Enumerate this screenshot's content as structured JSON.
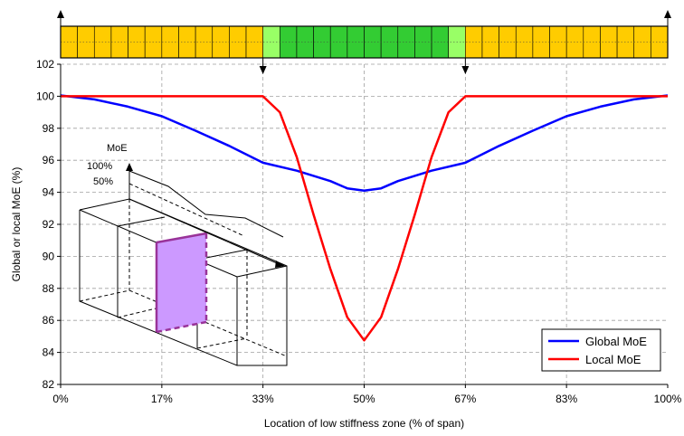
{
  "chart_data": {
    "type": "line",
    "xlabel": "Location of low stiffness zone (% of span)",
    "ylabel": "Global or local MoE (%)",
    "xlim": [
      0,
      100
    ],
    "ylim": [
      82,
      102
    ],
    "x_ticks": [
      0,
      16.67,
      33.33,
      50,
      66.67,
      83.33,
      100
    ],
    "x_tick_labels": [
      "0%",
      "17%",
      "33%",
      "50%",
      "67%",
      "83%",
      "100%"
    ],
    "y_ticks": [
      82,
      84,
      86,
      88,
      90,
      92,
      94,
      96,
      98,
      100,
      102
    ],
    "y_tick_labels": [
      "82",
      "84",
      "86",
      "88",
      "90",
      "92",
      "94",
      "96",
      "98",
      "100",
      "102"
    ],
    "grid": true,
    "legend_position": "bottom-right",
    "series": [
      {
        "name": "Global MoE",
        "color": "#0000ff",
        "x": [
          0,
          5.56,
          11.11,
          16.67,
          22.22,
          27.78,
          33.33,
          38.89,
          44.44,
          47.22,
          50,
          52.78,
          55.56,
          61.11,
          66.67,
          72.22,
          77.78,
          83.33,
          88.89,
          94.44,
          100
        ],
        "y": [
          100.05,
          99.8,
          99.35,
          98.75,
          97.85,
          96.9,
          95.85,
          95.35,
          94.7,
          94.25,
          94.1,
          94.25,
          94.7,
          95.35,
          95.85,
          96.9,
          97.85,
          98.75,
          99.35,
          99.8,
          100.05
        ]
      },
      {
        "name": "Local MoE",
        "color": "#ff0000",
        "x": [
          0,
          33.33,
          36.11,
          38.89,
          41.67,
          44.44,
          47.22,
          50,
          52.78,
          55.56,
          58.33,
          61.11,
          63.89,
          66.67,
          100
        ],
        "y": [
          100,
          100,
          99,
          96.2,
          92.6,
          89.2,
          86.2,
          84.75,
          86.2,
          89.2,
          92.6,
          96.2,
          99,
          100,
          100
        ]
      }
    ],
    "top_strip": {
      "segments": 36,
      "colors": [
        "#ffcc00",
        "#ffcc00",
        "#ffcc00",
        "#ffcc00",
        "#ffcc00",
        "#ffcc00",
        "#ffcc00",
        "#ffcc00",
        "#ffcc00",
        "#ffcc00",
        "#ffcc00",
        "#ffcc00",
        "#99ff66",
        "#33cc33",
        "#33cc33",
        "#33cc33",
        "#33cc33",
        "#33cc33",
        "#33cc33",
        "#33cc33",
        "#33cc33",
        "#33cc33",
        "#33cc33",
        "#99ff66",
        "#ffcc00",
        "#ffcc00",
        "#ffcc00",
        "#ffcc00",
        "#ffcc00",
        "#ffcc00",
        "#ffcc00",
        "#ffcc00",
        "#ffcc00",
        "#ffcc00",
        "#ffcc00",
        "#ffcc00"
      ],
      "down_arrows_at": [
        33.33,
        66.67
      ]
    },
    "inset": {
      "moe_label": "MoE",
      "level_labels": [
        "100%",
        "50%"
      ],
      "zone_color": "#cc99ff",
      "zone_edge_color": "#993399"
    }
  }
}
